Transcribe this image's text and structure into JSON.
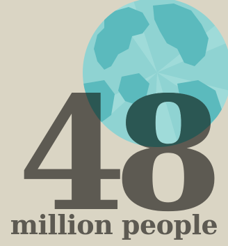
{
  "infographic": {
    "number": "48",
    "caption": "million people",
    "colors": {
      "background": "#dad5c4",
      "text": "#5d5a52",
      "globe_ocean": "#8fd3d2",
      "globe_land": "#5bbabd",
      "overlap": "#2b5753"
    }
  },
  "icons": {
    "globe": "globe-icon"
  }
}
